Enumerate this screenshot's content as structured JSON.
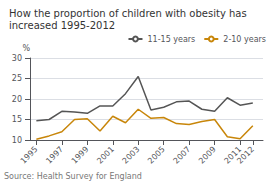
{
  "chart_data": {
    "type": "line",
    "title": "How the proportion of children with obesity has increased 1995-2012",
    "annotations": [
      "Source: Health Survey for England"
    ],
    "ylabel": "%",
    "x": [
      1995,
      1996,
      1997,
      1998,
      1999,
      2000,
      2001,
      2002,
      2003,
      2004,
      2005,
      2006,
      2007,
      2008,
      2009,
      2010,
      2011,
      2012
    ],
    "series": [
      {
        "name": "11-15 years",
        "color": "#555555",
        "values": [
          14.7,
          15.0,
          17.0,
          16.8,
          16.5,
          18.3,
          18.3,
          21.3,
          25.5,
          17.3,
          18.0,
          19.3,
          19.5,
          17.5,
          17.0,
          20.3,
          18.5,
          19.0
        ]
      },
      {
        "name": "2-10 years",
        "color": "#c8860a",
        "values": [
          10.2,
          11.0,
          12.0,
          15.0,
          15.2,
          12.2,
          15.8,
          14.2,
          17.5,
          15.3,
          15.5,
          14.0,
          13.8,
          14.5,
          15.0,
          10.8,
          10.3,
          13.5
        ]
      }
    ],
    "xlim": [
      1994.5,
      2012.8
    ],
    "xticks": [
      1995,
      1997,
      1999,
      2001,
      2003,
      2005,
      2007,
      2009,
      2011,
      2012
    ],
    "ylim": [
      10,
      30
    ],
    "yticks": [
      10,
      15,
      20,
      25,
      30
    ],
    "grid": true,
    "legend": "upper right"
  }
}
